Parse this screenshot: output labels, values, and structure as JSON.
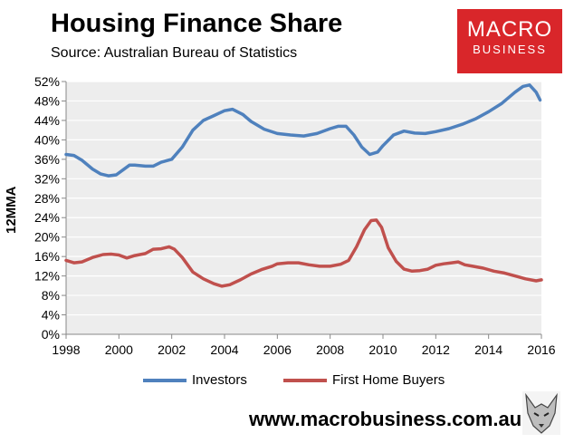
{
  "header": {
    "title": "Housing Finance Share",
    "source": "Source: Australian Bureau of Statistics"
  },
  "logo": {
    "line1": "MACRO",
    "line2": "BUSINESS"
  },
  "footer": {
    "url": "www.macrobusiness.com.au"
  },
  "chart_data": {
    "type": "line",
    "title": "Housing Finance Share",
    "ylabel": "12MMA",
    "xlabel": "",
    "xlim": [
      1998,
      2016
    ],
    "ylim": [
      0,
      52
    ],
    "x_ticks": [
      "1998",
      "2000",
      "2002",
      "2004",
      "2006",
      "2008",
      "2010",
      "2012",
      "2014",
      "2016"
    ],
    "y_ticks": [
      "0%",
      "4%",
      "8%",
      "12%",
      "16%",
      "20%",
      "24%",
      "28%",
      "32%",
      "36%",
      "40%",
      "44%",
      "48%",
      "52%"
    ],
    "grid": "horizontal",
    "legend": "bottom",
    "colors": {
      "plot_bg": "#ededed",
      "grid": "#ffffff"
    },
    "series": [
      {
        "name": "Investors",
        "color": "#4f81bd",
        "x": [
          1998.0,
          1998.3,
          1998.6,
          1999.0,
          1999.3,
          1999.6,
          1999.9,
          2000.2,
          2000.4,
          2000.6,
          2001.0,
          2001.3,
          2001.6,
          2002.0,
          2002.4,
          2002.8,
          2003.2,
          2003.6,
          2004.0,
          2004.3,
          2004.7,
          2005.0,
          2005.5,
          2006.0,
          2006.5,
          2007.0,
          2007.5,
          2008.0,
          2008.3,
          2008.6,
          2008.9,
          2009.2,
          2009.5,
          2009.8,
          2010.0,
          2010.4,
          2010.8,
          2011.2,
          2011.6,
          2012.0,
          2012.5,
          2013.0,
          2013.5,
          2014.0,
          2014.5,
          2015.0,
          2015.3,
          2015.55,
          2015.8,
          2015.95
        ],
        "values": [
          37.0,
          36.8,
          35.8,
          34.0,
          33.0,
          32.6,
          32.8,
          34.0,
          34.8,
          34.8,
          34.6,
          34.6,
          35.4,
          36.0,
          38.5,
          42.0,
          44.0,
          45.0,
          46.0,
          46.3,
          45.2,
          43.8,
          42.2,
          41.3,
          41.0,
          40.8,
          41.3,
          42.3,
          42.8,
          42.8,
          41.0,
          38.5,
          37.0,
          37.5,
          38.8,
          41.0,
          41.8,
          41.4,
          41.3,
          41.7,
          42.3,
          43.2,
          44.3,
          45.8,
          47.5,
          49.8,
          51.0,
          51.3,
          49.8,
          48.2
        ]
      },
      {
        "name": "First Home Buyers",
        "color": "#c0504d",
        "x": [
          1998.0,
          1998.3,
          1998.6,
          1999.0,
          1999.4,
          1999.7,
          2000.0,
          2000.3,
          2000.6,
          2001.0,
          2001.3,
          2001.6,
          2001.9,
          2002.1,
          2002.4,
          2002.8,
          2003.2,
          2003.6,
          2003.9,
          2004.2,
          2004.6,
          2005.0,
          2005.4,
          2005.8,
          2006.0,
          2006.4,
          2006.8,
          2007.2,
          2007.6,
          2008.0,
          2008.4,
          2008.7,
          2009.0,
          2009.3,
          2009.55,
          2009.75,
          2009.95,
          2010.2,
          2010.5,
          2010.8,
          2011.1,
          2011.4,
          2011.7,
          2012.0,
          2012.3,
          2012.6,
          2012.85,
          2013.1,
          2013.4,
          2013.8,
          2014.2,
          2014.6,
          2015.0,
          2015.4,
          2015.8,
          2016.0
        ],
        "values": [
          15.2,
          14.7,
          14.9,
          15.8,
          16.4,
          16.5,
          16.3,
          15.7,
          16.2,
          16.6,
          17.5,
          17.6,
          18.0,
          17.5,
          15.8,
          12.8,
          11.4,
          10.4,
          9.9,
          10.2,
          11.2,
          12.4,
          13.3,
          14.0,
          14.5,
          14.7,
          14.7,
          14.3,
          14.0,
          14.0,
          14.4,
          15.2,
          18.0,
          21.5,
          23.4,
          23.5,
          22.0,
          17.8,
          15.0,
          13.4,
          13.0,
          13.1,
          13.4,
          14.2,
          14.5,
          14.7,
          14.9,
          14.3,
          14.0,
          13.6,
          13.0,
          12.6,
          12.0,
          11.4,
          11.0,
          11.2
        ]
      }
    ]
  }
}
